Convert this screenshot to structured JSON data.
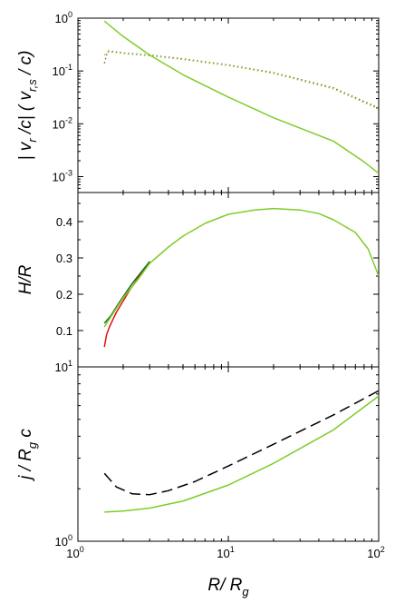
{
  "chart_data": [
    {
      "type": "line",
      "panel": "top",
      "ylabel_parts": [
        "| v",
        "r",
        " /c| ( v",
        "r,s",
        " / c)"
      ],
      "yscale": "log",
      "xscale": "log",
      "xlim": [
        1,
        100
      ],
      "ylim": [
        0.0005,
        1
      ],
      "ytick_labels": [
        {
          "base": "10",
          "exp": "0",
          "value": 1
        },
        {
          "base": "10",
          "exp": "-1",
          "value": 0.1
        },
        {
          "base": "10",
          "exp": "-2",
          "value": 0.01
        },
        {
          "base": "10",
          "exp": "-3",
          "value": 0.001
        }
      ],
      "series": [
        {
          "color": "#7fcc2a",
          "style": "solid",
          "x": [
            1.5,
            2,
            3,
            5,
            10,
            20,
            50,
            80,
            100
          ],
          "y": [
            0.88,
            0.45,
            0.2,
            0.085,
            0.032,
            0.013,
            0.0047,
            0.0019,
            0.00115
          ]
        },
        {
          "color": "#a0522d",
          "style": "dotted",
          "x": [
            1.5,
            1.55,
            1.6,
            2,
            3,
            5,
            10,
            20,
            50,
            100
          ],
          "y": [
            0.14,
            0.2,
            0.24,
            0.22,
            0.2,
            0.17,
            0.13,
            0.093,
            0.048,
            0.02
          ]
        },
        {
          "color": "#7fcc2a",
          "style": "dotted",
          "x": [
            1.5,
            1.6,
            2,
            3,
            5,
            10,
            20,
            50,
            100
          ],
          "y": [
            0.2,
            0.23,
            0.215,
            0.195,
            0.165,
            0.127,
            0.09,
            0.046,
            0.019
          ]
        }
      ]
    },
    {
      "type": "line",
      "panel": "middle",
      "ylabel_parts": [
        "H/R"
      ],
      "xscale": "log",
      "xlim": [
        1,
        100
      ],
      "ylim": [
        0,
        0.48
      ],
      "ytick_labels": [
        {
          "label": "0.1",
          "value": 0.1
        },
        {
          "label": "0.2",
          "value": 0.2
        },
        {
          "label": "0.3",
          "value": 0.3
        },
        {
          "label": "0.4",
          "value": 0.4
        }
      ],
      "series": [
        {
          "color": "#e01010",
          "style": "solid",
          "x": [
            1.5,
            1.55,
            1.62,
            1.8,
            2.2,
            3
          ],
          "y": [
            0.055,
            0.088,
            0.11,
            0.15,
            0.21,
            0.29
          ]
        },
        {
          "color": "#1a6b1a",
          "style": "solid",
          "x": [
            1.5,
            1.65,
            1.9,
            2.3,
            3
          ],
          "y": [
            0.12,
            0.14,
            0.18,
            0.23,
            0.29
          ]
        },
        {
          "color": "#7fcc2a",
          "style": "solid",
          "x": [
            1.5,
            1.7,
            2,
            2.5,
            3,
            4,
            5,
            7,
            10,
            15,
            20,
            30,
            40,
            50,
            70,
            85,
            100
          ],
          "y": [
            0.11,
            0.145,
            0.19,
            0.24,
            0.285,
            0.33,
            0.36,
            0.395,
            0.42,
            0.432,
            0.436,
            0.432,
            0.422,
            0.405,
            0.37,
            0.325,
            0.25
          ]
        }
      ]
    },
    {
      "type": "line",
      "panel": "bottom",
      "ylabel_parts": [
        "j / R",
        "g",
        " c"
      ],
      "yscale": "log",
      "xscale": "log",
      "xlim": [
        1,
        100
      ],
      "ylim": [
        1,
        10
      ],
      "ytick_labels": [
        {
          "base": "10",
          "exp": "1",
          "value": 10
        },
        {
          "base": "10",
          "exp": "0",
          "value": 1
        }
      ],
      "xtick_labels": [
        {
          "base": "10",
          "exp": "0",
          "value": 1
        },
        {
          "base": "10",
          "exp": "1",
          "value": 10
        },
        {
          "base": "10",
          "exp": "2",
          "value": 100
        }
      ],
      "xlabel_parts": [
        "R/ R",
        "g"
      ],
      "series": [
        {
          "color": "#7fcc2a",
          "style": "solid",
          "x": [
            1.5,
            2,
            3,
            5,
            10,
            20,
            50,
            100
          ],
          "y": [
            1.47,
            1.49,
            1.55,
            1.7,
            2.1,
            2.8,
            4.35,
            6.8
          ]
        },
        {
          "color": "#000000",
          "style": "dashed",
          "x": [
            1.5,
            1.8,
            2.3,
            3,
            4,
            6,
            10,
            20,
            50,
            100
          ],
          "y": [
            2.45,
            2.05,
            1.87,
            1.85,
            1.95,
            2.2,
            2.7,
            3.6,
            5.3,
            7.3
          ]
        }
      ]
    }
  ]
}
